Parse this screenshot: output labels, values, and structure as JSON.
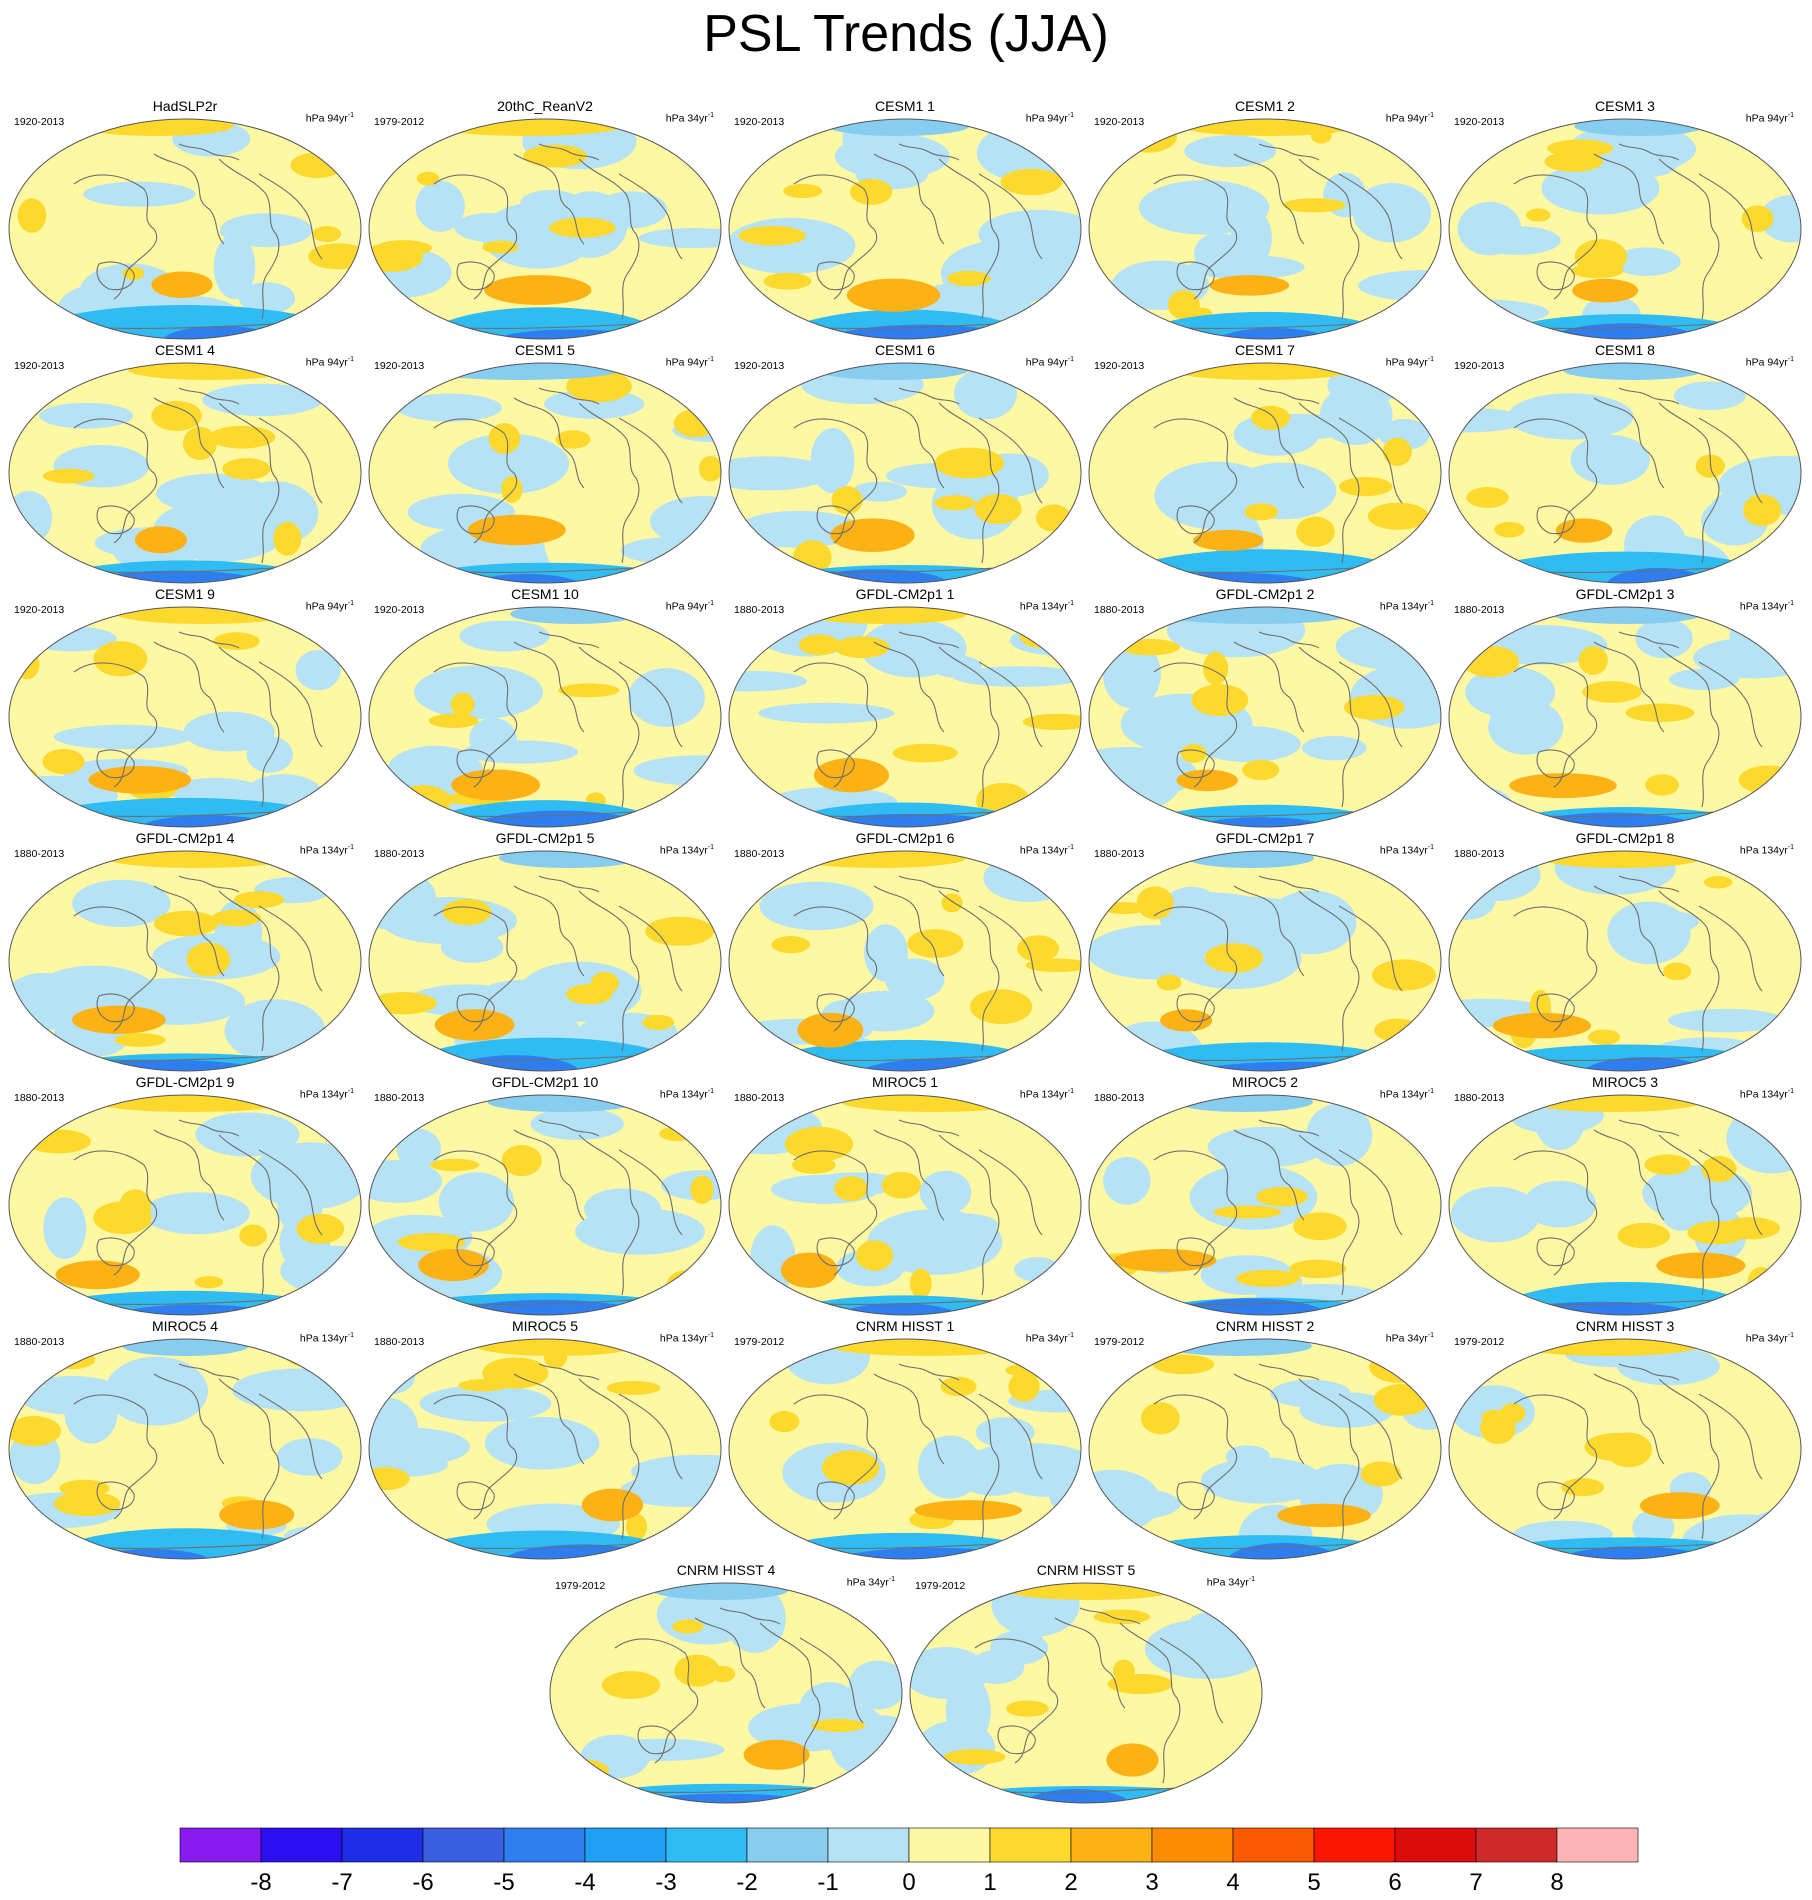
{
  "title": "PSL Trends (JJA)",
  "panels": [
    {
      "title": "HadSLP2r",
      "period": "1920-2013",
      "units": "hPa 94yr",
      "exp": "-1"
    },
    {
      "title": "20thC_ReanV2",
      "period": "1979-2012",
      "units": "hPa 34yr",
      "exp": "-1"
    },
    {
      "title": "CESM1 1",
      "period": "1920-2013",
      "units": "hPa 94yr",
      "exp": "-1"
    },
    {
      "title": "CESM1 2",
      "period": "1920-2013",
      "units": "hPa 94yr",
      "exp": "-1"
    },
    {
      "title": "CESM1 3",
      "period": "1920-2013",
      "units": "hPa 94yr",
      "exp": "-1"
    },
    {
      "title": "CESM1 4",
      "period": "1920-2013",
      "units": "hPa 94yr",
      "exp": "-1"
    },
    {
      "title": "CESM1 5",
      "period": "1920-2013",
      "units": "hPa 94yr",
      "exp": "-1"
    },
    {
      "title": "CESM1 6",
      "period": "1920-2013",
      "units": "hPa 94yr",
      "exp": "-1"
    },
    {
      "title": "CESM1 7",
      "period": "1920-2013",
      "units": "hPa 94yr",
      "exp": "-1"
    },
    {
      "title": "CESM1 8",
      "period": "1920-2013",
      "units": "hPa 94yr",
      "exp": "-1"
    },
    {
      "title": "CESM1 9",
      "period": "1920-2013",
      "units": "hPa 94yr",
      "exp": "-1"
    },
    {
      "title": "CESM1 10",
      "period": "1920-2013",
      "units": "hPa 94yr",
      "exp": "-1"
    },
    {
      "title": "GFDL-CM2p1 1",
      "period": "1880-2013",
      "units": "hPa 134yr",
      "exp": "-1"
    },
    {
      "title": "GFDL-CM2p1 2",
      "period": "1880-2013",
      "units": "hPa 134yr",
      "exp": "-1"
    },
    {
      "title": "GFDL-CM2p1 3",
      "period": "1880-2013",
      "units": "hPa 134yr",
      "exp": "-1"
    },
    {
      "title": "GFDL-CM2p1 4",
      "period": "1880-2013",
      "units": "hPa 134yr",
      "exp": "-1"
    },
    {
      "title": "GFDL-CM2p1 5",
      "period": "1880-2013",
      "units": "hPa 134yr",
      "exp": "-1"
    },
    {
      "title": "GFDL-CM2p1 6",
      "period": "1880-2013",
      "units": "hPa 134yr",
      "exp": "-1"
    },
    {
      "title": "GFDL-CM2p1 7",
      "period": "1880-2013",
      "units": "hPa 134yr",
      "exp": "-1"
    },
    {
      "title": "GFDL-CM2p1 8",
      "period": "1880-2013",
      "units": "hPa 134yr",
      "exp": "-1"
    },
    {
      "title": "GFDL-CM2p1 9",
      "period": "1880-2013",
      "units": "hPa 134yr",
      "exp": "-1"
    },
    {
      "title": "GFDL-CM2p1 10",
      "period": "1880-2013",
      "units": "hPa 134yr",
      "exp": "-1"
    },
    {
      "title": "MIROC5 1",
      "period": "1880-2013",
      "units": "hPa 134yr",
      "exp": "-1"
    },
    {
      "title": "MIROC5 2",
      "period": "1880-2013",
      "units": "hPa 134yr",
      "exp": "-1"
    },
    {
      "title": "MIROC5 3",
      "period": "1880-2013",
      "units": "hPa 134yr",
      "exp": "-1"
    },
    {
      "title": "MIROC5 4",
      "period": "1880-2013",
      "units": "hPa 134yr",
      "exp": "-1"
    },
    {
      "title": "MIROC5 5",
      "period": "1880-2013",
      "units": "hPa 134yr",
      "exp": "-1"
    },
    {
      "title": "CNRM HISST 1",
      "period": "1979-2012",
      "units": "hPa 34yr",
      "exp": "-1"
    },
    {
      "title": "CNRM HISST 2",
      "period": "1979-2012",
      "units": "hPa 34yr",
      "exp": "-1"
    },
    {
      "title": "CNRM HISST 3",
      "period": "1979-2012",
      "units": "hPa 34yr",
      "exp": "-1"
    },
    {
      "title": "CNRM HISST 4",
      "period": "1979-2012",
      "units": "hPa 34yr",
      "exp": "-1"
    },
    {
      "title": "CNRM HISST 5",
      "period": "1979-2012",
      "units": "hPa 34yr",
      "exp": "-1"
    }
  ],
  "colorbar": {
    "labels": [
      "-8",
      "-7",
      "-6",
      "-5",
      "-4",
      "-3",
      "-2",
      "-1",
      "0",
      "1",
      "2",
      "3",
      "4",
      "5",
      "6",
      "7",
      "8"
    ],
    "colors": [
      "#8a1bf0",
      "#2b0ef2",
      "#1e2ee6",
      "#3960e0",
      "#2f7ef0",
      "#1ea0f5",
      "#2fbcf2",
      "#87cdf0",
      "#b6e2f5",
      "#fef8a2",
      "#fdd92e",
      "#fcb214",
      "#fb8c00",
      "#fc5a00",
      "#fc1500",
      "#dd0c0c",
      "#cf2a2a",
      "#fcb4b4"
    ]
  }
}
